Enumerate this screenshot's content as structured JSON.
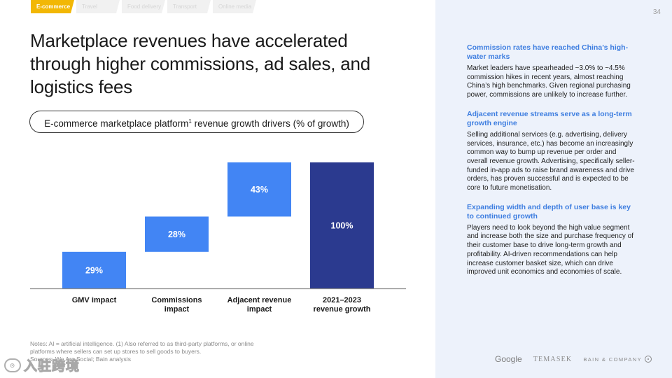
{
  "tabs": [
    {
      "label": "E-commerce",
      "active": true
    },
    {
      "label": "Travel",
      "active": false
    },
    {
      "label": "Food delivery",
      "active": false
    },
    {
      "label": "Transport",
      "active": false
    },
    {
      "label": "Online media",
      "active": false
    }
  ],
  "page_number": "34",
  "title": "Marketplace revenues have accelerated through higher commissions, ad sales, and logistics fees",
  "chart_title": {
    "text": "E-commerce marketplace platform",
    "footnote_marker": "1",
    "suffix": " revenue growth drivers (% of growth)"
  },
  "chart_data": {
    "type": "bar",
    "subtype": "waterfall",
    "title": "E-commerce marketplace platform revenue growth drivers (% of growth)",
    "unit": "% of growth",
    "categories": [
      "GMV impact",
      "Commissions impact",
      "Adjacent revenue impact",
      "2021–2023 revenue growth"
    ],
    "category_lines": [
      [
        "GMV impact"
      ],
      [
        "Commissions",
        "impact"
      ],
      [
        "Adjacent revenue",
        "impact"
      ],
      [
        "2021–2023",
        "revenue growth"
      ]
    ],
    "values": [
      29,
      28,
      43,
      100
    ],
    "labels": [
      "29%",
      "28%",
      "43%",
      "100%"
    ],
    "bar_kind": [
      "increment",
      "increment",
      "increment",
      "total"
    ],
    "ylim": [
      0,
      100
    ],
    "colors": {
      "increment": "#4285f4",
      "total": "#2b3a8f"
    }
  },
  "notes": "Notes: AI = artificial intelligence. (1) Also referred to as third-party platforms, or online platforms where sellers can set up stores to sell goods to buyers.\nSources: We Are Social; Bain analysis",
  "watermark": {
    "icon": "36Kr-logo-icon",
    "text": "入驻跨境"
  },
  "key_points": [
    {
      "heading": "Commission rates have reached China’s high-water marks",
      "body": "Market leaders have spearheaded ~3.0% to ~4.5% commission hikes in recent years, almost reaching China’s high benchmarks. Given regional purchasing power, commissions are unlikely to increase further."
    },
    {
      "heading": "Adjacent revenue streams serve as a long-term growth engine",
      "body": "Selling additional services (e.g. advertising, delivery services, insurance, etc.) has become an increasingly common way to bump up revenue per order and overall revenue growth. Advertising, specifically seller-funded in-app ads to raise brand awareness and drive orders, has proven successful and is expected to be core to future monetisation."
    },
    {
      "heading": "Expanding width and depth of user base is key to continued growth",
      "body": "Players need to look beyond the high value segment and increase both the size and purchase frequency of their customer base to drive long-term growth and profitability. AI-driven recommendations can help increase customer basket size, which can drive improved unit economics and economies of scale."
    }
  ],
  "logos": {
    "google": "Google",
    "temasek": "TEMASEK",
    "bain": "BAIN & COMPANY"
  }
}
